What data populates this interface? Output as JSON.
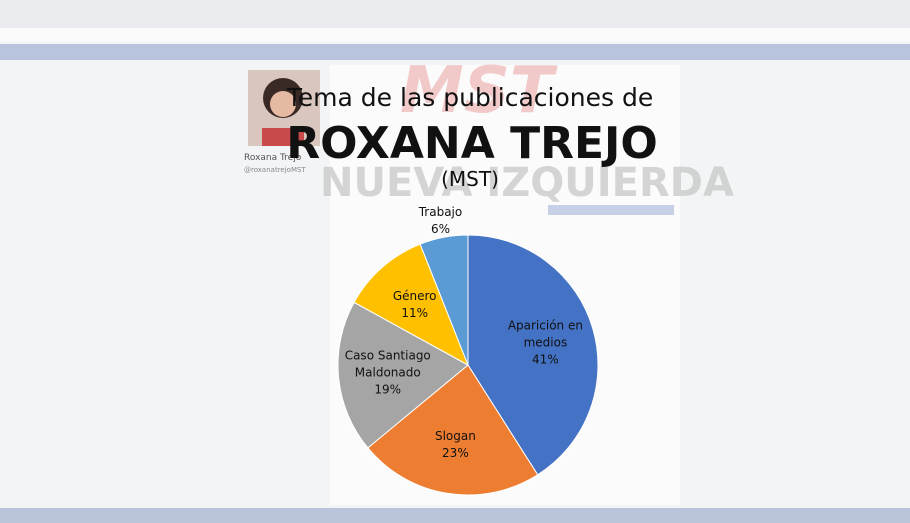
{
  "background": {
    "profile_name": "Roxana Trejo",
    "profile_handle": "@roxanatrejoMST",
    "watermark": "NUEVA IZQUIERDA"
  },
  "chart_data": {
    "type": "pie",
    "title": "Tema de las publicaciones de",
    "subtitle": "ROXANA TREJO",
    "note": "(MST)",
    "categories": [
      "Aparición en medios",
      "Slogan",
      "Caso Santiago Maldonado",
      "Género",
      "Trabajo"
    ],
    "values": [
      41,
      23,
      19,
      11,
      6
    ],
    "value_labels": [
      "41%",
      "23%",
      "19%",
      "11%",
      "6%"
    ],
    "colors": [
      "#4472c4",
      "#ed7d31",
      "#a5a5a5",
      "#ffc000",
      "#5b9bd5"
    ]
  }
}
